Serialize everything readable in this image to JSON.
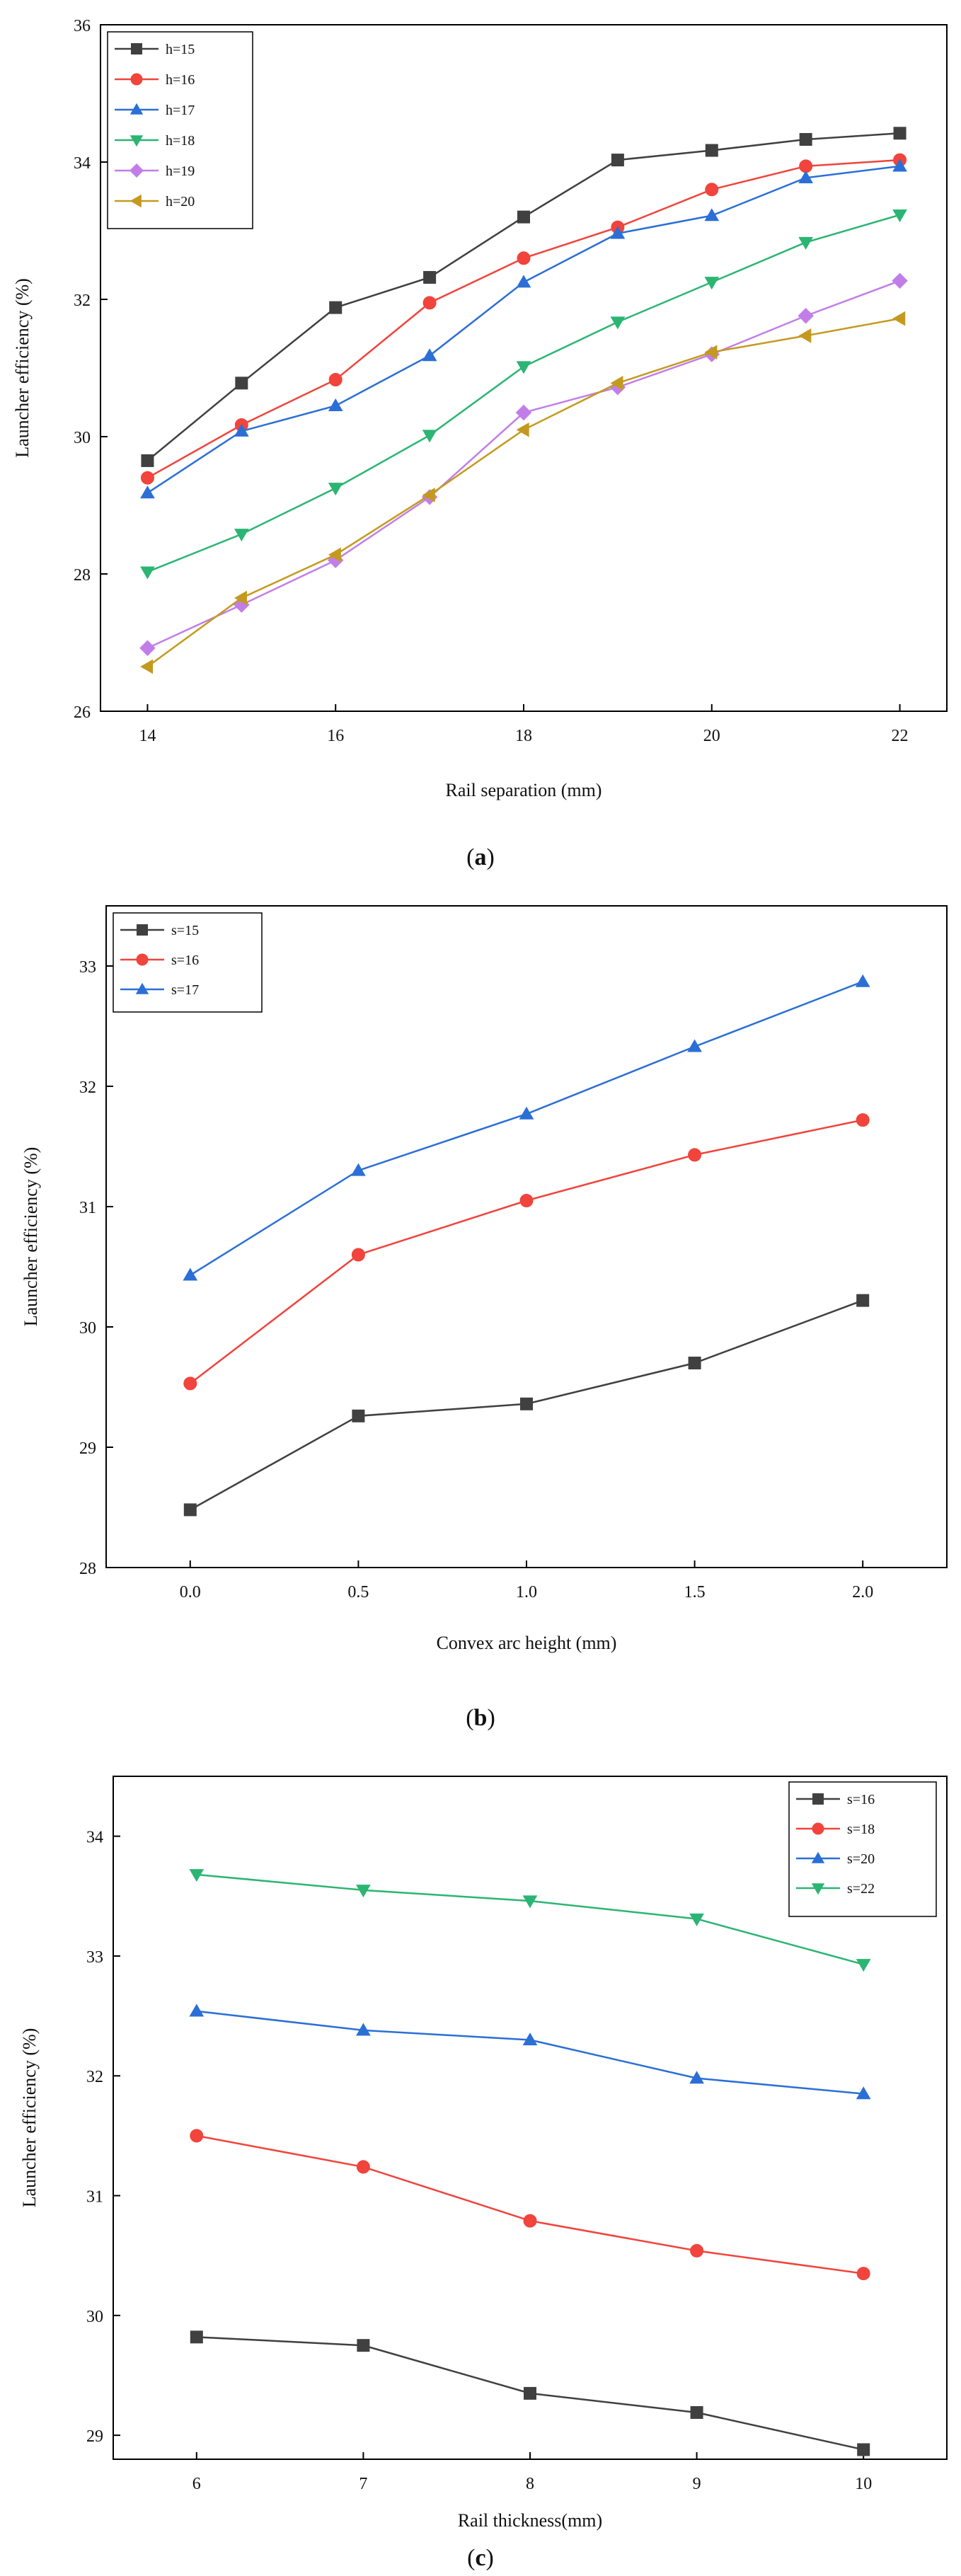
{
  "chart_data": [
    {
      "type": "line",
      "caption_open": "(",
      "caption_letter": "a",
      "caption_close": ")",
      "title": "",
      "xlabel": "Rail separation (mm)",
      "ylabel": "Launcher efficiency (%)",
      "xlim": [
        13.5,
        22.5
      ],
      "ylim": [
        26,
        36
      ],
      "xticks": [
        14,
        16,
        18,
        20,
        22
      ],
      "yticks": [
        26,
        28,
        30,
        32,
        34,
        36
      ],
      "legend_position": "top-left",
      "x": [
        14,
        15,
        16,
        17,
        18,
        19,
        20,
        21,
        22
      ],
      "series": [
        {
          "name": "h=15",
          "color": "#404040",
          "marker": "square",
          "values": [
            29.65,
            30.78,
            31.88,
            32.32,
            33.2,
            34.03,
            34.17,
            34.33,
            34.42
          ]
        },
        {
          "name": "h=16",
          "color": "#f0443c",
          "marker": "circle",
          "values": [
            29.4,
            30.17,
            30.83,
            31.95,
            32.6,
            33.05,
            33.6,
            33.94,
            34.03
          ]
        },
        {
          "name": "h=17",
          "color": "#2b6fd6",
          "marker": "triangle-up",
          "values": [
            29.18,
            30.08,
            30.45,
            31.18,
            32.25,
            32.96,
            33.22,
            33.77,
            33.94
          ]
        },
        {
          "name": "h=18",
          "color": "#2bb573",
          "marker": "triangle-down",
          "values": [
            28.03,
            28.58,
            29.25,
            30.02,
            31.02,
            31.67,
            32.25,
            32.83,
            33.23
          ]
        },
        {
          "name": "h=19",
          "color": "#c27ee8",
          "marker": "diamond",
          "values": [
            26.92,
            27.55,
            28.2,
            29.12,
            30.35,
            30.72,
            31.2,
            31.76,
            32.27
          ]
        },
        {
          "name": "h=20",
          "color": "#c49a1e",
          "marker": "triangle-left",
          "values": [
            26.65,
            27.65,
            28.28,
            29.15,
            30.1,
            30.78,
            31.23,
            31.47,
            31.72
          ]
        }
      ]
    },
    {
      "type": "line",
      "caption_open": "(",
      "caption_letter": "b",
      "caption_close": ")",
      "title": "",
      "xlabel": "Convex arc height (mm)",
      "ylabel": "Launcher efficiency (%)",
      "xlim": [
        -0.25,
        2.25
      ],
      "ylim": [
        28,
        33.5
      ],
      "xticks": [
        "0.0",
        "0.5",
        "1.0",
        "1.5",
        "2.0"
      ],
      "yticks": [
        28,
        29,
        30,
        31,
        32,
        33
      ],
      "legend_position": "top-left",
      "x": [
        0,
        0.5,
        1.0,
        1.5,
        2.0
      ],
      "series": [
        {
          "name": "s=15",
          "color": "#404040",
          "marker": "square",
          "values": [
            28.48,
            29.26,
            29.36,
            29.7,
            30.22
          ]
        },
        {
          "name": "s=16",
          "color": "#f0443c",
          "marker": "circle",
          "values": [
            29.53,
            30.6,
            31.05,
            31.43,
            31.72
          ]
        },
        {
          "name": "s=17",
          "color": "#2b6fd6",
          "marker": "triangle-up",
          "values": [
            30.43,
            31.3,
            31.77,
            32.33,
            32.87
          ]
        }
      ]
    },
    {
      "type": "line",
      "caption_open": "(",
      "caption_letter": "c",
      "caption_close": ")",
      "title": "",
      "xlabel": "Rail thickness(mm)",
      "ylabel": "Launcher efficiency (%)",
      "xlim": [
        5.5,
        10.5
      ],
      "ylim": [
        28.8,
        34.5
      ],
      "xticks": [
        6,
        7,
        8,
        9,
        10
      ],
      "yticks": [
        29,
        30,
        31,
        32,
        33,
        34
      ],
      "legend_position": "top-right",
      "x": [
        6,
        7,
        8,
        9,
        10
      ],
      "series": [
        {
          "name": "s=16",
          "color": "#404040",
          "marker": "square",
          "values": [
            29.82,
            29.75,
            29.35,
            29.19,
            28.88
          ]
        },
        {
          "name": "s=18",
          "color": "#f0443c",
          "marker": "circle",
          "values": [
            31.5,
            31.24,
            30.79,
            30.54,
            30.35
          ]
        },
        {
          "name": "s=20",
          "color": "#2b6fd6",
          "marker": "triangle-up",
          "values": [
            32.54,
            32.38,
            32.3,
            31.98,
            31.85
          ]
        },
        {
          "name": "s=22",
          "color": "#2bb573",
          "marker": "triangle-down",
          "values": [
            33.68,
            33.55,
            33.46,
            33.31,
            32.93
          ]
        }
      ]
    }
  ]
}
